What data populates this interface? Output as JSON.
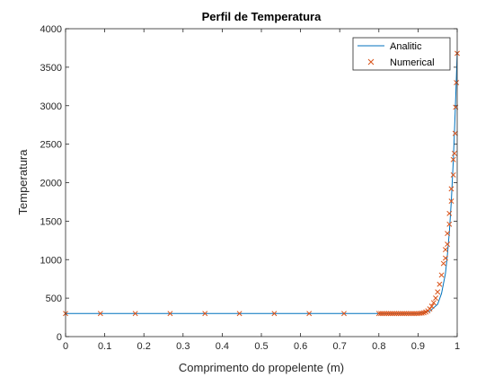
{
  "chart_data": {
    "type": "line",
    "title": "Perfil de Temperatura",
    "xlabel": "Comprimento do propelente (m)",
    "ylabel": "Temperatura",
    "xlim": [
      0,
      1
    ],
    "ylim": [
      0,
      4000
    ],
    "xticks": [
      0,
      0.1,
      0.2,
      0.3,
      0.4,
      0.5,
      0.6,
      0.7,
      0.8,
      0.9,
      1
    ],
    "xtick_labels": [
      "0",
      "0.1",
      "0.2",
      "0.3",
      "0.4",
      "0.5",
      "0.6",
      "0.7",
      "0.8",
      "0.9",
      "1"
    ],
    "yticks": [
      0,
      500,
      1000,
      1500,
      2000,
      2500,
      3000,
      3500,
      4000
    ],
    "ytick_labels": [
      "0",
      "500",
      "1000",
      "1500",
      "2000",
      "2500",
      "3000",
      "3500",
      "4000"
    ],
    "grid": false,
    "legend_position": "top-right",
    "series": [
      {
        "name": "Analitic",
        "style": "line",
        "color": "#0072BD",
        "x": [
          0,
          0.8,
          0.9,
          0.93,
          0.95,
          0.96,
          0.97,
          0.975,
          0.98,
          0.985,
          0.99,
          0.993,
          0.996,
          0.998,
          1.0
        ],
        "y": [
          300,
          300,
          300,
          330,
          420,
          560,
          820,
          1060,
          1360,
          1760,
          2280,
          2660,
          3080,
          3380,
          3680
        ]
      },
      {
        "name": "Numerical",
        "style": "markers",
        "marker": "x",
        "color": "#D95319",
        "x": [
          0,
          0.089,
          0.178,
          0.267,
          0.356,
          0.444,
          0.533,
          0.622,
          0.711,
          0.8,
          0.805,
          0.81,
          0.815,
          0.82,
          0.825,
          0.83,
          0.835,
          0.84,
          0.845,
          0.85,
          0.855,
          0.86,
          0.865,
          0.87,
          0.875,
          0.88,
          0.885,
          0.89,
          0.895,
          0.9,
          0.905,
          0.91,
          0.915,
          0.92,
          0.925,
          0.93,
          0.935,
          0.94,
          0.945,
          0.95,
          0.955,
          0.96,
          0.965,
          0.97,
          0.975,
          0.98,
          0.985,
          0.99,
          0.995,
          1.0
        ],
        "y": [
          300,
          300,
          300,
          300,
          300,
          300,
          300,
          300,
          300,
          300,
          300,
          300,
          300,
          300,
          300,
          300,
          300,
          300,
          300,
          300,
          300,
          300,
          300,
          300,
          300,
          300,
          300,
          300,
          300,
          300,
          302,
          305,
          310,
          320,
          335,
          360,
          395,
          440,
          500,
          580,
          680,
          800,
          950,
          1130,
          1340,
          1600,
          1920,
          2300,
          2640,
          3680
        ]
      },
      {
        "name": "",
        "style": "markers",
        "marker": "x",
        "color": "#D95319",
        "x": [
          0.97,
          0.975,
          0.98,
          0.985,
          0.99,
          0.993,
          0.996,
          0.998
        ],
        "y": [
          1020,
          1200,
          1460,
          1760,
          2100,
          2380,
          2980,
          3300
        ]
      }
    ]
  }
}
